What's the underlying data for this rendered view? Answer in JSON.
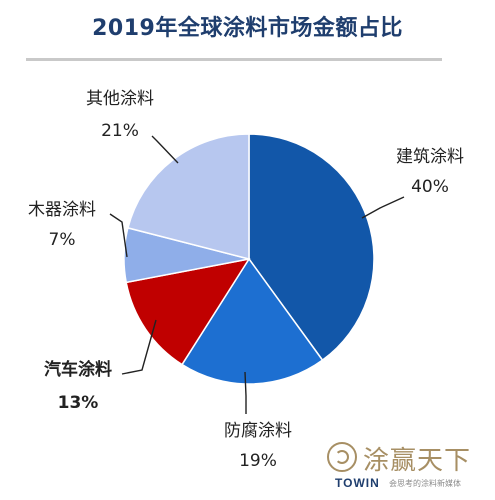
{
  "chart_data": {
    "type": "pie",
    "title": "2019年全球涂料市场金额占比",
    "slices": [
      {
        "label": "建筑涂料",
        "value": 40,
        "value_label": "40%",
        "color": "#1257a9"
      },
      {
        "label": "防腐涂料",
        "value": 19,
        "value_label": "19%",
        "color": "#1d6fd1"
      },
      {
        "label": "汽车涂料",
        "value": 13,
        "value_label": "13%",
        "color": "#c00000",
        "emphasis": "bold"
      },
      {
        "label": "木器涂料",
        "value": 7,
        "value_label": "7%",
        "color": "#8faee9"
      },
      {
        "label": "其他涂料",
        "value": 21,
        "value_label": "21%",
        "color": "#b7c7ef"
      }
    ],
    "start_angle": "12 o'clock",
    "direction": "clockwise",
    "legend": "none"
  },
  "brand": {
    "name": "涂赢天下",
    "english": "TOWIN",
    "slogan": "会思考的涂料新媒体"
  }
}
